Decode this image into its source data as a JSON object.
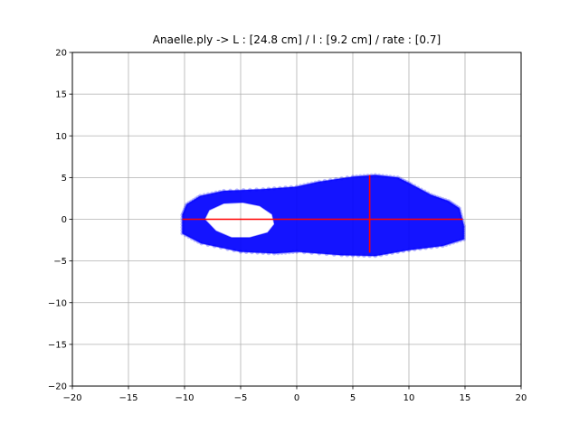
{
  "chart_data": {
    "type": "scatter",
    "title": "Anaelle.ply ->  L : [24.8 cm] / l : [9.2 cm] / rate : [0.7]",
    "xlabel": "",
    "ylabel": "",
    "xlim": [
      -20,
      20
    ],
    "ylim": [
      -20,
      20
    ],
    "grid": true,
    "xticks": [
      "−20",
      "−15",
      "−10",
      "−5",
      "0",
      "5",
      "10",
      "15",
      "20"
    ],
    "yticks": [
      "−20",
      "−15",
      "−10",
      "−5",
      "0",
      "5",
      "10",
      "15",
      "20"
    ],
    "point_cloud": {
      "color": "#0000ff",
      "outline": [
        [
          -10.2,
          0.5
        ],
        [
          -9.8,
          1.8
        ],
        [
          -8.6,
          2.8
        ],
        [
          -6.5,
          3.4
        ],
        [
          -3,
          3.6
        ],
        [
          0,
          3.9
        ],
        [
          2,
          4.5
        ],
        [
          5,
          5.1
        ],
        [
          7,
          5.3
        ],
        [
          9,
          5.0
        ],
        [
          10.2,
          4.2
        ],
        [
          12,
          2.9
        ],
        [
          13.5,
          2.2
        ],
        [
          14.5,
          1.3
        ],
        [
          14.9,
          -0.8
        ],
        [
          14.9,
          -2.4
        ],
        [
          13,
          -3.2
        ],
        [
          10,
          -3.7
        ],
        [
          7,
          -4.4
        ],
        [
          4,
          -4.3
        ],
        [
          0,
          -3.9
        ],
        [
          -2,
          -4.1
        ],
        [
          -5,
          -3.9
        ],
        [
          -8.5,
          -2.9
        ],
        [
          -10.2,
          -1.7
        ]
      ],
      "hole": [
        [
          -8.2,
          0
        ],
        [
          -7.8,
          1.1
        ],
        [
          -6.5,
          1.9
        ],
        [
          -4.8,
          2.0
        ],
        [
          -3.3,
          1.6
        ],
        [
          -2.2,
          0.6
        ],
        [
          -2.0,
          -0.6
        ],
        [
          -2.6,
          -1.6
        ],
        [
          -4.2,
          -2.2
        ],
        [
          -5.8,
          -2.2
        ],
        [
          -7.2,
          -1.4
        ]
      ]
    },
    "lines": [
      {
        "color": "#ff0000",
        "x": [
          -10.2,
          14.8
        ],
        "y": [
          0,
          0
        ]
      },
      {
        "color": "#ff0000",
        "x": [
          6.5,
          6.5
        ],
        "y": [
          -4.0,
          5.3
        ]
      }
    ]
  }
}
